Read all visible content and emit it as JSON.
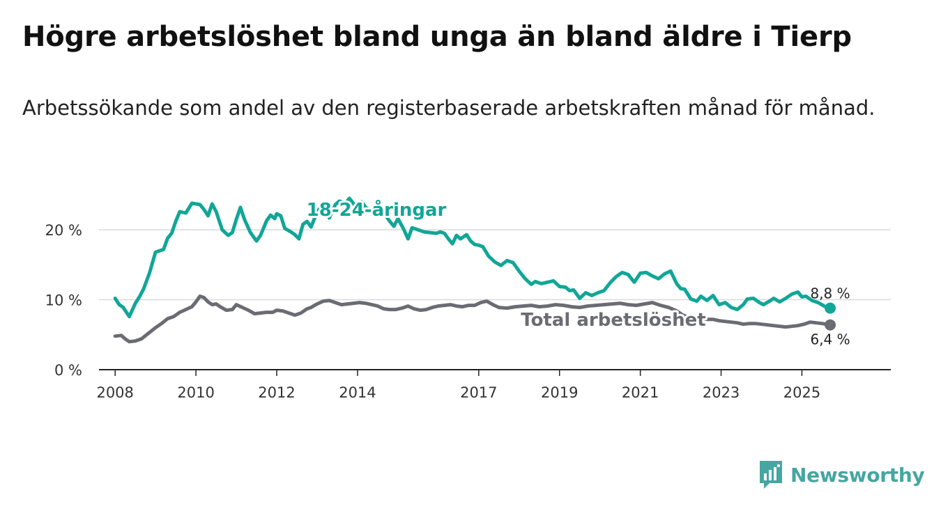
{
  "title": "Högre arbetslöshet bland unga än bland äldre i Tierp",
  "subtitle": "Arbetssökande som andel av den registerbaserade arbetskraften månad för månad.",
  "brand": {
    "name": "Newsworthy",
    "color": "#46a6a0",
    "icon": "bar-chart-badge-icon"
  },
  "chart_data": {
    "type": "line",
    "title": "Högre arbetslöshet bland unga än bland äldre i Tierp",
    "xlabel": "",
    "ylabel": "",
    "xlim": [
      2007.6,
      2027.2
    ],
    "ylim": [
      0,
      22
    ],
    "grid": true,
    "yticks": [
      {
        "value": 0,
        "label": "0 %"
      },
      {
        "value": 10,
        "label": "10 %"
      },
      {
        "value": 20,
        "label": "20 %"
      }
    ],
    "xticks": [
      {
        "value": 2008,
        "label": "2008"
      },
      {
        "value": 2010,
        "label": "2010"
      },
      {
        "value": 2012,
        "label": "2012"
      },
      {
        "value": 2014,
        "label": "2014"
      },
      {
        "value": 2017,
        "label": "2017"
      },
      {
        "value": 2019,
        "label": "2019"
      },
      {
        "value": 2021,
        "label": "2021"
      },
      {
        "value": 2023,
        "label": "2023"
      },
      {
        "value": 2025,
        "label": "2025"
      }
    ],
    "series": [
      {
        "name": "18-24-åringar",
        "label": "18-24-åringar",
        "color": "#11a697",
        "end_label": "8,8 %",
        "x": [
          2008.0,
          2008.1,
          2008.2,
          2008.35,
          2008.5,
          2008.6,
          2008.7,
          2008.85,
          2009.0,
          2009.2,
          2009.3,
          2009.4,
          2009.5,
          2009.6,
          2009.75,
          2009.9,
          2010.0,
          2010.1,
          2010.2,
          2010.3,
          2010.4,
          2010.5,
          2010.65,
          2010.8,
          2010.9,
          2011.0,
          2011.1,
          2011.2,
          2011.35,
          2011.5,
          2011.6,
          2011.75,
          2011.85,
          2011.95,
          2012.0,
          2012.1,
          2012.2,
          2012.35,
          2012.45,
          2012.55,
          2012.65,
          2012.75,
          2012.85,
          2013.0,
          2013.1,
          2013.2,
          2013.3,
          2013.45,
          2013.55,
          2013.7,
          2013.8,
          2013.95,
          2014.1,
          2014.2,
          2014.35,
          2014.5,
          2014.65,
          2014.8,
          2014.9,
          2015.0,
          2015.15,
          2015.25,
          2015.35,
          2015.5,
          2015.65,
          2015.8,
          2015.95,
          2016.05,
          2016.15,
          2016.25,
          2016.35,
          2016.45,
          2016.55,
          2016.7,
          2016.8,
          2016.9,
          2017.0,
          2017.1,
          2017.25,
          2017.4,
          2017.55,
          2017.7,
          2017.85,
          2018.0,
          2018.15,
          2018.3,
          2018.4,
          2018.55,
          2018.7,
          2018.85,
          2019.0,
          2019.15,
          2019.25,
          2019.35,
          2019.5,
          2019.65,
          2019.8,
          2019.95,
          2020.1,
          2020.25,
          2020.4,
          2020.55,
          2020.7,
          2020.85,
          2021.0,
          2021.15,
          2021.3,
          2021.45,
          2021.6,
          2021.75,
          2021.9,
          2022.0,
          2022.1,
          2022.25,
          2022.4,
          2022.5,
          2022.65,
          2022.8,
          2022.95,
          2023.1,
          2023.25,
          2023.4,
          2023.55,
          2023.65,
          2023.8,
          2023.95,
          2024.05,
          2024.2,
          2024.3,
          2024.45,
          2024.6,
          2024.75,
          2024.9,
          2025.0,
          2025.1,
          2025.25,
          2025.4,
          2025.55,
          2025.7
        ],
        "y": [
          10.2,
          9.3,
          8.9,
          7.6,
          9.5,
          10.4,
          11.5,
          13.8,
          16.8,
          17.2,
          18.8,
          19.5,
          21.2,
          22.6,
          22.4,
          23.8,
          23.7,
          23.6,
          22.9,
          22.0,
          23.7,
          22.6,
          20.0,
          19.2,
          19.6,
          21.5,
          23.2,
          21.5,
          19.6,
          18.4,
          19.2,
          21.3,
          22.1,
          21.6,
          22.3,
          22.0,
          20.2,
          19.7,
          19.3,
          18.7,
          20.8,
          21.2,
          20.4,
          22.6,
          23.3,
          23.6,
          21.7,
          23.6,
          24.1,
          23.8,
          24.5,
          23.4,
          24.0,
          23.2,
          22.7,
          22.8,
          22.4,
          21.2,
          20.5,
          21.6,
          20.0,
          18.7,
          20.3,
          20.0,
          19.7,
          19.6,
          19.5,
          19.7,
          19.5,
          18.7,
          18.0,
          19.2,
          18.7,
          19.3,
          18.4,
          17.9,
          17.8,
          17.6,
          16.2,
          15.4,
          14.9,
          15.6,
          15.3,
          14.1,
          13.0,
          12.2,
          12.6,
          12.3,
          12.5,
          12.7,
          11.9,
          11.8,
          11.3,
          11.4,
          10.2,
          11.0,
          10.6,
          11.0,
          11.3,
          12.4,
          13.3,
          13.9,
          13.6,
          12.5,
          13.8,
          13.9,
          13.4,
          13.0,
          13.7,
          14.1,
          12.3,
          11.6,
          11.5,
          10.1,
          9.8,
          10.5,
          9.9,
          10.6,
          9.3,
          9.6,
          8.9,
          8.6,
          9.3,
          10.1,
          10.2,
          9.6,
          9.3,
          9.8,
          10.2,
          9.7,
          10.2,
          10.8,
          11.1,
          10.4,
          10.5,
          9.9,
          9.6,
          9.1,
          8.8
        ]
      },
      {
        "name": "Total arbetslöshet",
        "label": "Total arbetslöshet",
        "color": "#6b6b73",
        "end_label": "6,4 %",
        "x": [
          2008.0,
          2008.15,
          2008.25,
          2008.35,
          2008.5,
          2008.65,
          2008.8,
          2009.0,
          2009.15,
          2009.3,
          2009.45,
          2009.6,
          2009.75,
          2009.9,
          2010.0,
          2010.1,
          2010.2,
          2010.3,
          2010.4,
          2010.5,
          2010.6,
          2010.75,
          2010.9,
          2011.0,
          2011.15,
          2011.3,
          2011.45,
          2011.6,
          2011.75,
          2011.9,
          2012.0,
          2012.15,
          2012.3,
          2012.45,
          2012.6,
          2012.75,
          2012.85,
          2013.0,
          2013.15,
          2013.3,
          2013.45,
          2013.6,
          2013.75,
          2013.9,
          2014.05,
          2014.2,
          2014.35,
          2014.5,
          2014.65,
          2014.8,
          2014.95,
          2015.1,
          2015.25,
          2015.4,
          2015.55,
          2015.7,
          2015.85,
          2016.0,
          2016.15,
          2016.3,
          2016.45,
          2016.6,
          2016.75,
          2016.9,
          2017.05,
          2017.2,
          2017.35,
          2017.5,
          2017.7,
          2017.9,
          2018.1,
          2018.3,
          2018.5,
          2018.7,
          2018.9,
          2019.1,
          2019.3,
          2019.5,
          2019.7,
          2019.9,
          2020.1,
          2020.3,
          2020.5,
          2020.7,
          2020.9,
          2021.1,
          2021.3,
          2021.5,
          2021.7,
          2021.9,
          2022.05,
          2022.2,
          2022.35,
          2022.5,
          2022.65,
          2022.8,
          2022.95,
          2023.1,
          2023.25,
          2023.4,
          2023.55,
          2023.7,
          2023.85,
          2024.0,
          2024.15,
          2024.3,
          2024.45,
          2024.6,
          2024.75,
          2024.9,
          2025.05,
          2025.2,
          2025.35,
          2025.5,
          2025.7
        ],
        "y": [
          4.8,
          4.9,
          4.4,
          4.0,
          4.1,
          4.4,
          5.1,
          6.0,
          6.6,
          7.3,
          7.6,
          8.2,
          8.6,
          9.0,
          9.7,
          10.5,
          10.3,
          9.7,
          9.3,
          9.4,
          9.0,
          8.5,
          8.6,
          9.3,
          8.9,
          8.5,
          8.0,
          8.1,
          8.2,
          8.2,
          8.5,
          8.4,
          8.1,
          7.8,
          8.1,
          8.7,
          8.9,
          9.4,
          9.8,
          9.9,
          9.6,
          9.3,
          9.4,
          9.5,
          9.6,
          9.5,
          9.3,
          9.1,
          8.7,
          8.6,
          8.6,
          8.8,
          9.1,
          8.7,
          8.5,
          8.6,
          8.9,
          9.1,
          9.2,
          9.3,
          9.1,
          9.0,
          9.2,
          9.2,
          9.6,
          9.8,
          9.3,
          8.9,
          8.8,
          9.0,
          9.1,
          9.2,
          9.0,
          9.1,
          9.3,
          9.2,
          9.0,
          8.9,
          9.1,
          9.2,
          9.3,
          9.4,
          9.5,
          9.3,
          9.2,
          9.4,
          9.6,
          9.2,
          8.9,
          8.4,
          7.8,
          7.5,
          7.4,
          7.3,
          7.2,
          7.2,
          7.0,
          6.9,
          6.8,
          6.7,
          6.5,
          6.6,
          6.6,
          6.5,
          6.4,
          6.3,
          6.2,
          6.1,
          6.2,
          6.3,
          6.5,
          6.8,
          6.7,
          6.6,
          6.4
        ]
      }
    ]
  }
}
